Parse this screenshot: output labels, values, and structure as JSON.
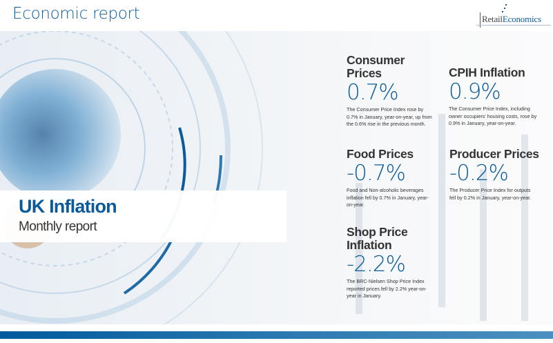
{
  "header": {
    "title": "Economic report",
    "logo": {
      "part1": "Retail",
      "part2": "Economics"
    }
  },
  "cover": {
    "title": "UK Inflation",
    "subtitle": "Monthly report"
  },
  "stats": [
    {
      "heading": "Consumer Prices",
      "value": "0.7%",
      "description": "The Consumer Price Index rose by 0.7% in January, year-on-year, up from the 0.6% rise in the previous month."
    },
    {
      "heading": "CPIH Inflation",
      "value": "0.9%",
      "description": "The Consumer Price Index, including owner occupiers' housing costs, rose by 0.9% in January, year-on-year."
    },
    {
      "heading": "Food Prices",
      "value": "-0.7%",
      "description": "Food and Non-alcoholic beverages inflation fell by 0.7% in January, year-on-year."
    },
    {
      "heading": "Producer Prices",
      "value": "-0.2%",
      "description": "The Producer Price Index for outputs fell by 0.2% in January, year-on-year."
    },
    {
      "heading": "Shop Price Inflation",
      "value": "-2.2%",
      "description": "The BRC-Nielsen Shop Price Index reported prices fell by 2.2% year-on-year in January."
    }
  ],
  "colors": {
    "brand": "#0b5b9b",
    "text": "#333333"
  }
}
